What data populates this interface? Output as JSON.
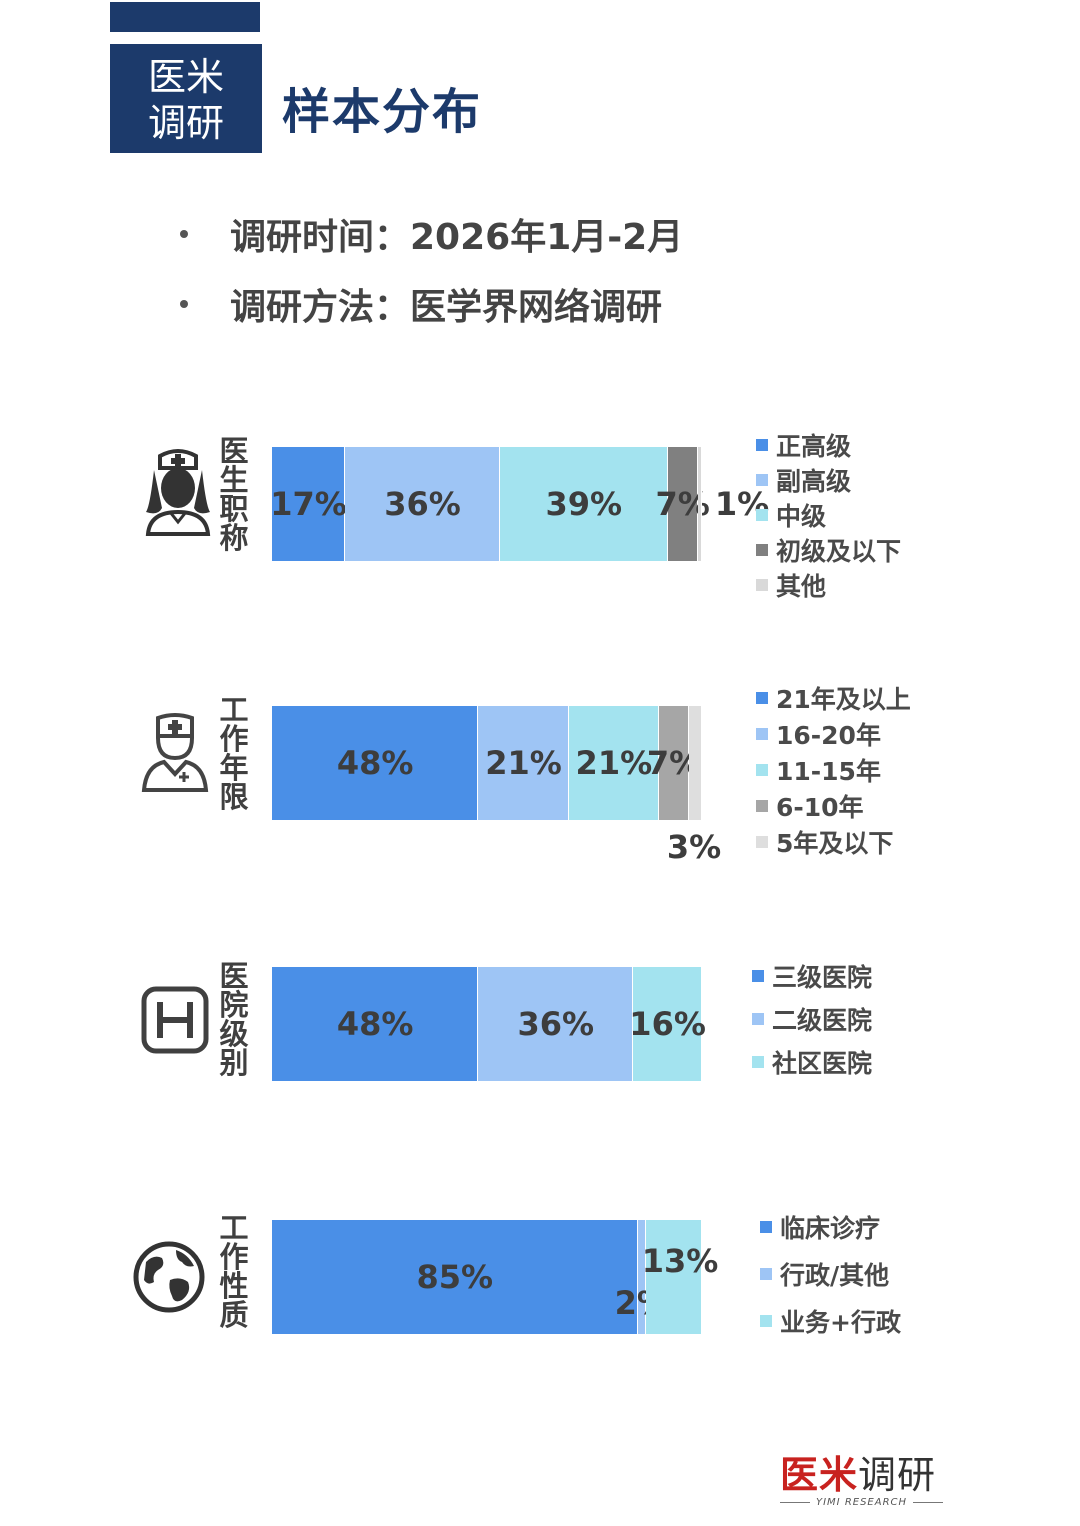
{
  "header": {
    "brand_line1": "医米",
    "brand_line2": "调研",
    "title": "样本分布"
  },
  "info": {
    "survey_time": "调研时间：2026年1月-2月",
    "survey_method": "调研方法：医学界网络调研"
  },
  "chart_data": [
    {
      "type": "bar",
      "orientation": "horizontal-stacked-100",
      "category_label": "医生职称",
      "icon": "nurse-icon",
      "series": [
        {
          "name": "正高级",
          "value": 17,
          "label": "17%",
          "color": "#4a8fe7"
        },
        {
          "name": "副高级",
          "value": 36,
          "label": "36%",
          "color": "#9ec5f5"
        },
        {
          "name": "中级",
          "value": 39,
          "label": "39%",
          "color": "#a3e3ef"
        },
        {
          "name": "初级及以下",
          "value": 7,
          "label": "7%",
          "color": "#808080"
        },
        {
          "name": "其他",
          "value": 1,
          "label": "1%",
          "color": "#d9d9d9"
        }
      ]
    },
    {
      "type": "bar",
      "orientation": "horizontal-stacked-100",
      "category_label": "工作年限",
      "icon": "doctor-icon",
      "series": [
        {
          "name": "21年及以上",
          "value": 48,
          "label": "48%",
          "color": "#4a8fe7"
        },
        {
          "name": "16-20年",
          "value": 21,
          "label": "21%",
          "color": "#9ec5f5"
        },
        {
          "name": "11-15年",
          "value": 21,
          "label": "21%",
          "color": "#a3e3ef"
        },
        {
          "name": "6-10年",
          "value": 7,
          "label": "7%",
          "color": "#a6a6a6"
        },
        {
          "name": "5年及以下",
          "value": 3,
          "label": "3%",
          "color": "#dedede"
        }
      ]
    },
    {
      "type": "bar",
      "orientation": "horizontal-stacked-100",
      "category_label": "医院级别",
      "icon": "hospital-icon",
      "series": [
        {
          "name": "三级医院",
          "value": 48,
          "label": "48%",
          "color": "#4a8fe7"
        },
        {
          "name": "二级医院",
          "value": 36,
          "label": "36%",
          "color": "#9ec5f5"
        },
        {
          "name": "社区医院",
          "value": 16,
          "label": "16%",
          "color": "#a3e3ef"
        }
      ]
    },
    {
      "type": "bar",
      "orientation": "horizontal-stacked-100",
      "category_label": "工作性质",
      "icon": "globe-icon",
      "series": [
        {
          "name": "临床诊疗",
          "value": 85,
          "label": "85%",
          "color": "#4a8fe7"
        },
        {
          "name": "行政/其他",
          "value": 2,
          "label": "2%",
          "color": "#9ec5f5"
        },
        {
          "name": "业务+行政",
          "value": 13,
          "label": "13%",
          "color": "#a3e3ef"
        }
      ]
    }
  ],
  "footer": {
    "logo_red": "医米",
    "logo_dark": "调研",
    "logo_sub": "YIMI RESEARCH"
  }
}
